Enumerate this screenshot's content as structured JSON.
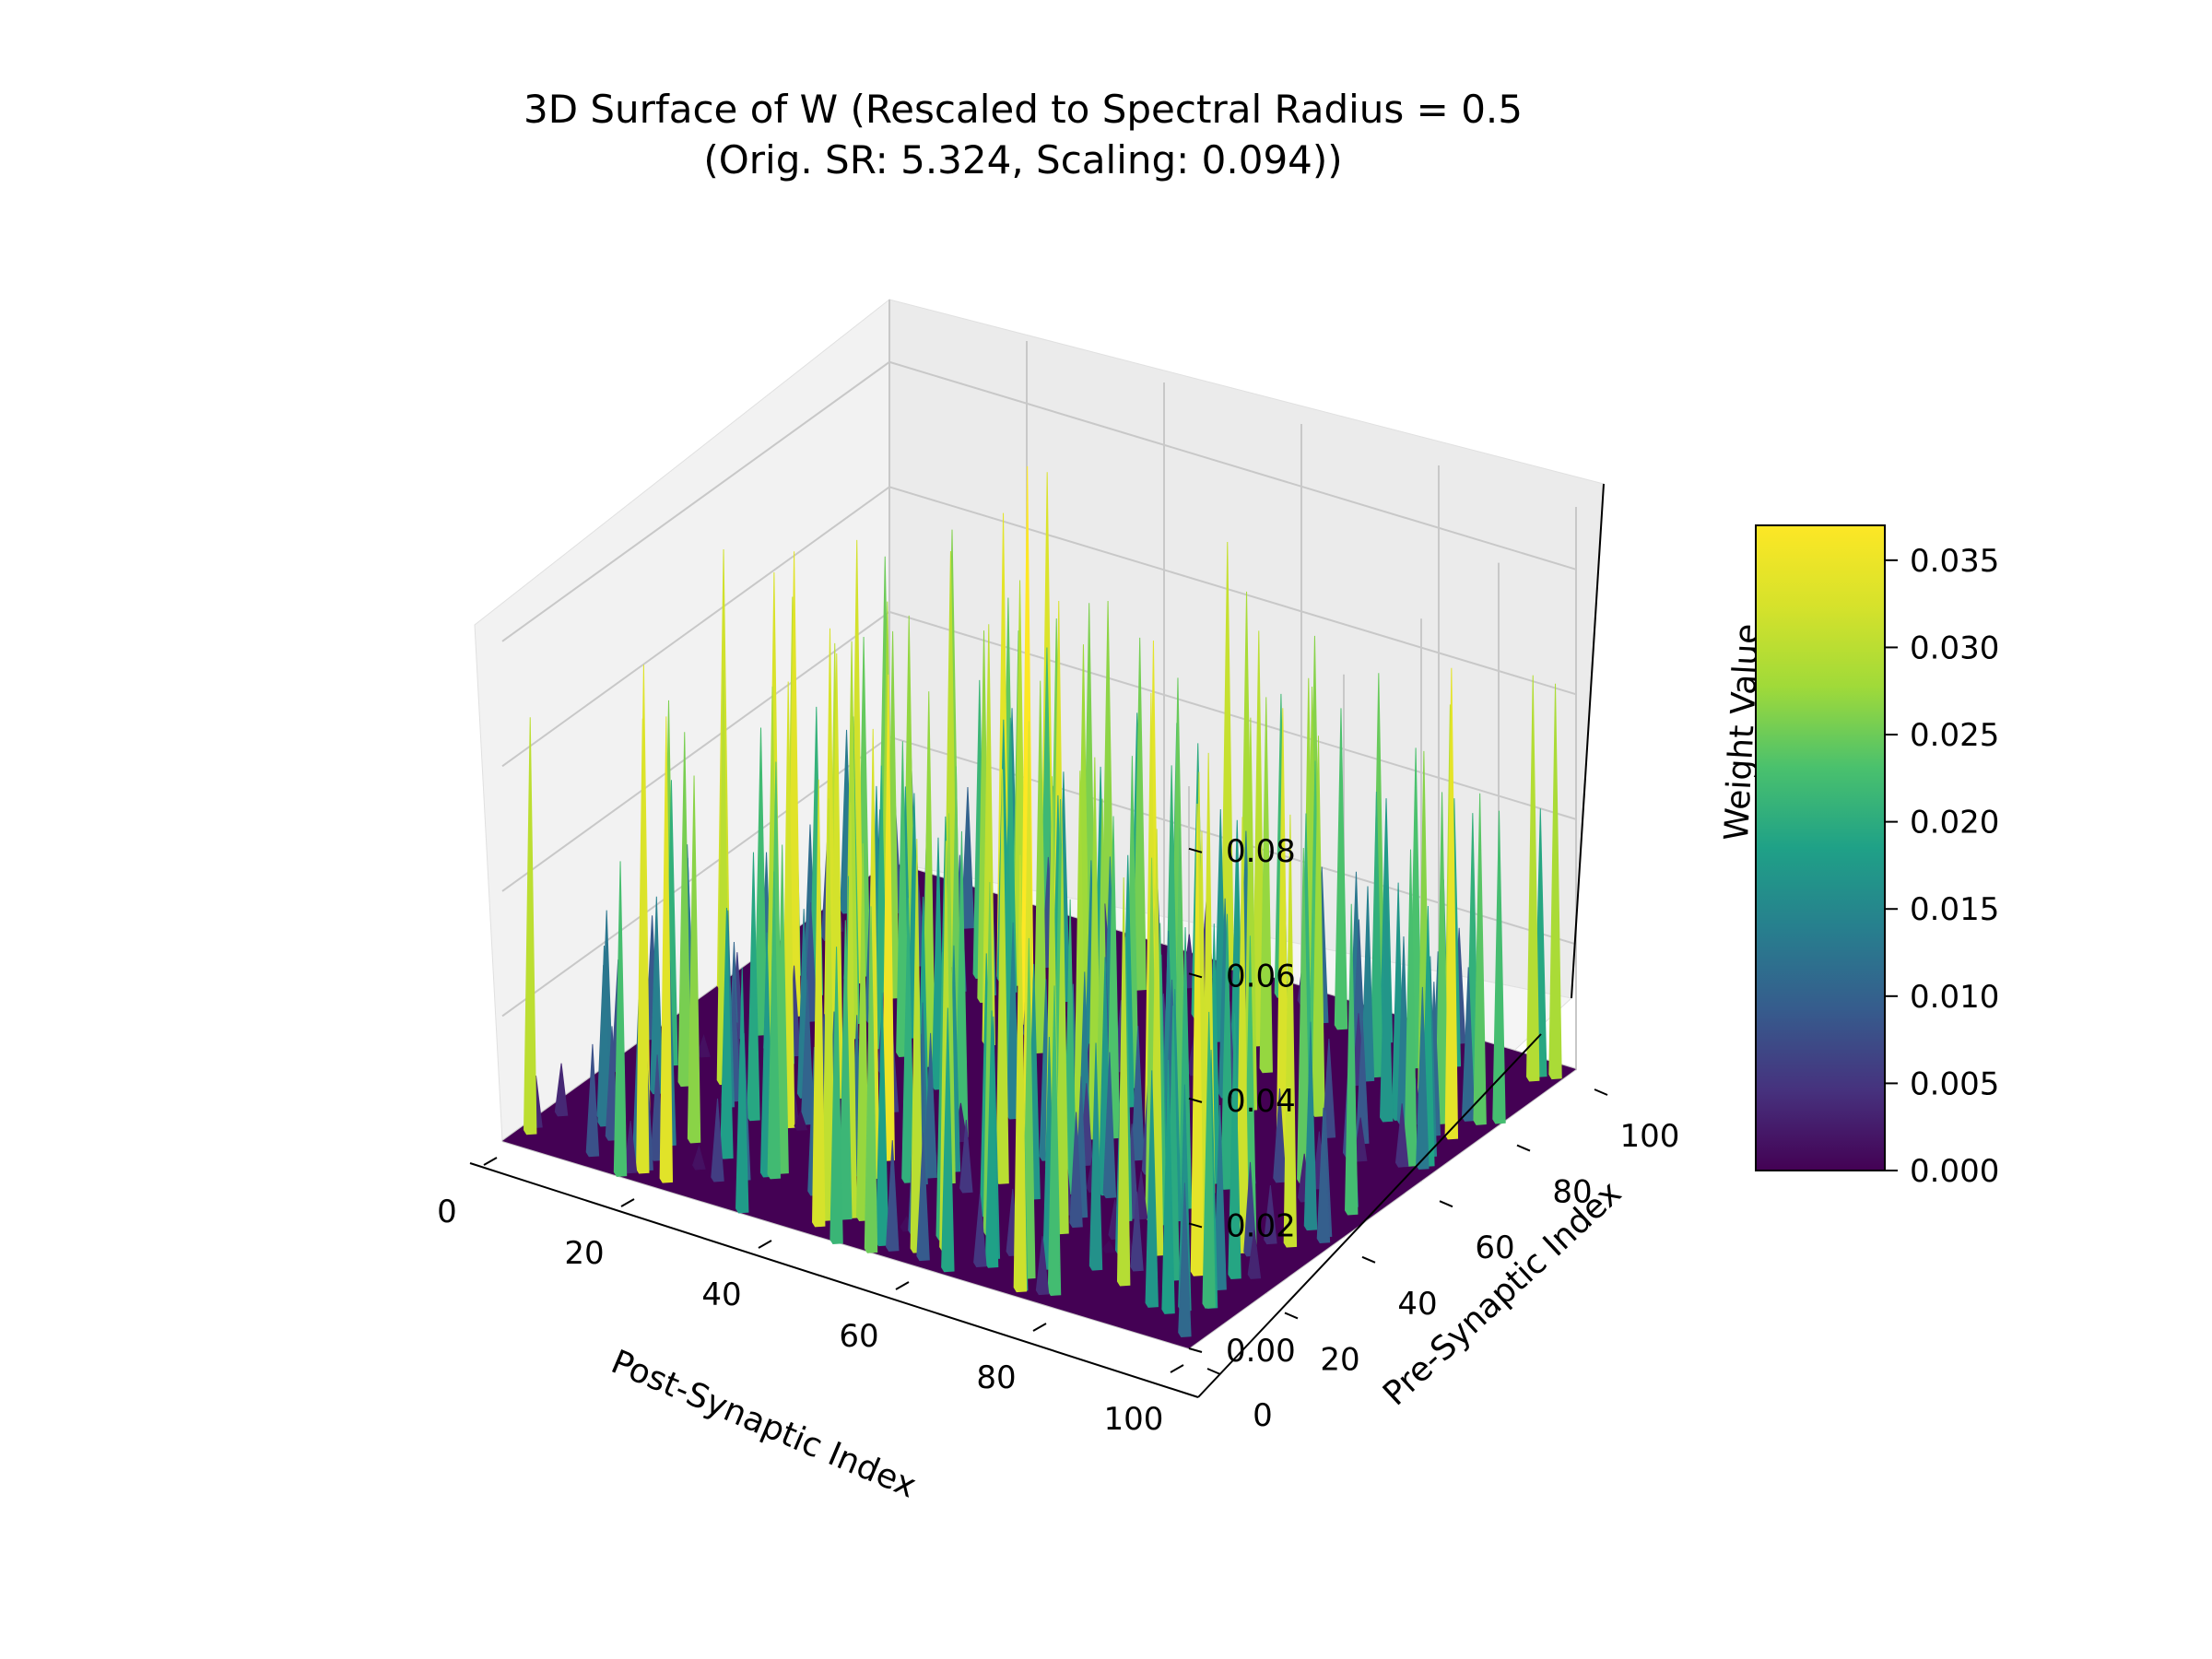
{
  "chart_data": {
    "type": "surface3d",
    "title_line1": "3D Surface of W (Rescaled to Spectral Radius = 0.5",
    "title_line2": "(Orig. SR: 5.324, Scaling: 0.094))",
    "xlabel": "Post-Synaptic Index",
    "ylabel": "Pre-Synaptic Index",
    "zlabel": "Weight Value",
    "x_ticks": [
      0,
      20,
      40,
      60,
      80,
      100
    ],
    "y_ticks": [
      0,
      20,
      40,
      60,
      80,
      100
    ],
    "z_ticks": [
      0.0,
      0.02,
      0.04,
      0.06,
      0.08
    ],
    "z_tick_labels": [
      "0.00",
      "0.02",
      "0.04",
      "0.06",
      "0.08"
    ],
    "xlim": [
      0,
      100
    ],
    "ylim": [
      0,
      100
    ],
    "zlim": [
      0,
      0.09
    ],
    "colormap": "viridis",
    "colorbar": {
      "range": [
        0,
        0.037
      ],
      "ticks": [
        0.0,
        0.005,
        0.01,
        0.015,
        0.02,
        0.025,
        0.03,
        0.035
      ],
      "tick_labels": [
        "0.000",
        "0.005",
        "0.010",
        "0.015",
        "0.020",
        "0.025",
        "0.030",
        "0.035"
      ]
    },
    "grid": true
  }
}
